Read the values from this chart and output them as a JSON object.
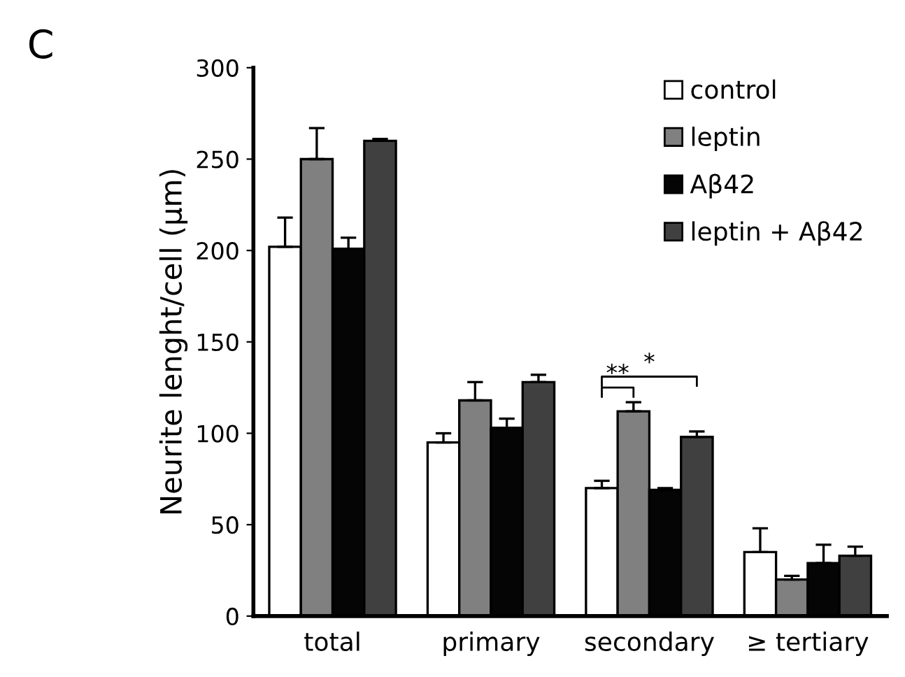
{
  "chart_data": {
    "type": "bar",
    "title": "C",
    "ylabel": "Neurite lenght/cell (µm)",
    "categories": [
      "total",
      "primary",
      "secondary",
      "≥ tertiary"
    ],
    "series": [
      {
        "name": "control",
        "color": "#ffffff",
        "values": [
          202,
          95,
          70,
          35
        ],
        "errors": [
          16,
          5,
          4,
          13
        ]
      },
      {
        "name": "leptin",
        "color": "#808080",
        "values": [
          250,
          118,
          112,
          20
        ],
        "errors": [
          17,
          10,
          5,
          2
        ]
      },
      {
        "name": "Aβ42",
        "color": "#050505",
        "values": [
          201,
          103,
          69,
          29
        ],
        "errors": [
          6,
          5,
          1,
          10
        ]
      },
      {
        "name": "leptin + Aβ42",
        "color": "#404040",
        "values": [
          260,
          128,
          98,
          33
        ],
        "errors": [
          1,
          4,
          3,
          5
        ]
      }
    ],
    "ylim": [
      0,
      300
    ],
    "yticks": [
      0,
      50,
      100,
      150,
      200,
      250,
      300
    ],
    "grid": false,
    "legend": "top right",
    "annotations": [
      "**",
      "*"
    ]
  }
}
